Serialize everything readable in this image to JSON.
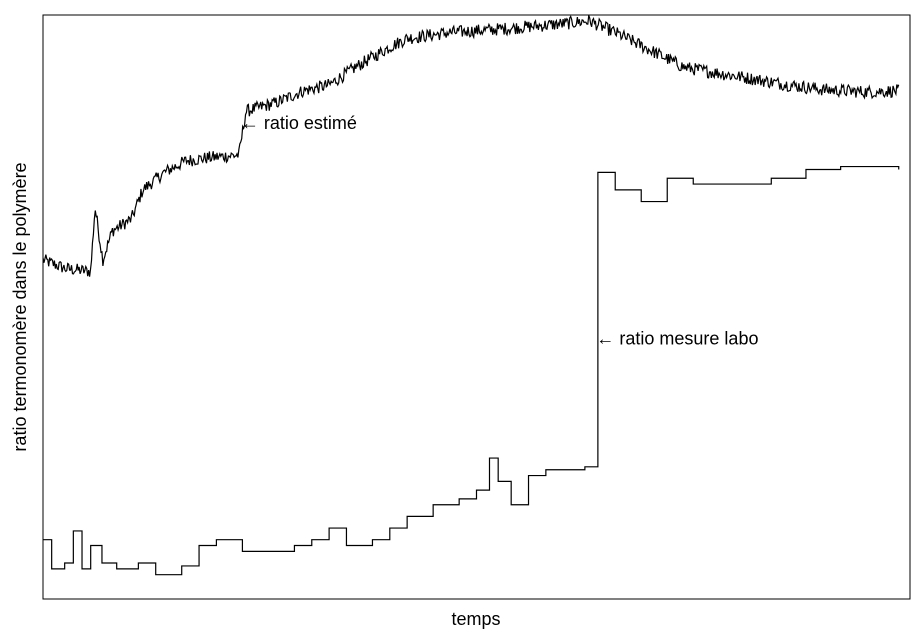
{
  "chart_data": {
    "type": "line",
    "title": "",
    "xlabel": "temps",
    "ylabel": "ratio termonomère dans le polymère",
    "x_ticks_shown": false,
    "y_ticks_shown": false,
    "grid": false,
    "legend": "none",
    "xlim": [
      0,
      1
    ],
    "ylim": [
      0,
      1
    ],
    "series": [
      {
        "name": "ratio estimé",
        "style": "noisy-line",
        "color": "#000000",
        "points": [
          [
            0.0,
            0.58
          ],
          [
            0.026,
            0.565
          ],
          [
            0.055,
            0.56
          ],
          [
            0.06,
            0.67
          ],
          [
            0.069,
            0.58
          ],
          [
            0.08,
            0.63
          ],
          [
            0.102,
            0.65
          ],
          [
            0.115,
            0.7
          ],
          [
            0.14,
            0.73
          ],
          [
            0.165,
            0.75
          ],
          [
            0.19,
            0.755
          ],
          [
            0.226,
            0.76
          ],
          [
            0.234,
            0.835
          ],
          [
            0.27,
            0.85
          ],
          [
            0.3,
            0.87
          ],
          [
            0.33,
            0.88
          ],
          [
            0.36,
            0.91
          ],
          [
            0.4,
            0.945
          ],
          [
            0.42,
            0.96
          ],
          [
            0.47,
            0.97
          ],
          [
            0.52,
            0.975
          ],
          [
            0.56,
            0.98
          ],
          [
            0.6,
            0.985
          ],
          [
            0.63,
            0.99
          ],
          [
            0.66,
            0.97
          ],
          [
            0.7,
            0.94
          ],
          [
            0.74,
            0.91
          ],
          [
            0.78,
            0.9
          ],
          [
            0.82,
            0.89
          ],
          [
            0.86,
            0.88
          ],
          [
            0.9,
            0.872
          ],
          [
            0.95,
            0.868
          ],
          [
            0.987,
            0.87
          ]
        ]
      },
      {
        "name": "ratio mesure labo",
        "style": "step",
        "color": "#000000",
        "points": [
          [
            0.0,
            0.1
          ],
          [
            0.01,
            0.05
          ],
          [
            0.025,
            0.06
          ],
          [
            0.035,
            0.115
          ],
          [
            0.045,
            0.05
          ],
          [
            0.055,
            0.09
          ],
          [
            0.068,
            0.06
          ],
          [
            0.085,
            0.05
          ],
          [
            0.11,
            0.06
          ],
          [
            0.13,
            0.04
          ],
          [
            0.16,
            0.055
          ],
          [
            0.18,
            0.09
          ],
          [
            0.2,
            0.1
          ],
          [
            0.23,
            0.08
          ],
          [
            0.26,
            0.08
          ],
          [
            0.29,
            0.09
          ],
          [
            0.31,
            0.1
          ],
          [
            0.33,
            0.12
          ],
          [
            0.35,
            0.09
          ],
          [
            0.38,
            0.1
          ],
          [
            0.4,
            0.12
          ],
          [
            0.42,
            0.14
          ],
          [
            0.45,
            0.16
          ],
          [
            0.48,
            0.17
          ],
          [
            0.5,
            0.185
          ],
          [
            0.515,
            0.24
          ],
          [
            0.525,
            0.2
          ],
          [
            0.54,
            0.16
          ],
          [
            0.56,
            0.21
          ],
          [
            0.58,
            0.22
          ],
          [
            0.625,
            0.225
          ],
          [
            0.64,
            0.73
          ],
          [
            0.66,
            0.7
          ],
          [
            0.69,
            0.68
          ],
          [
            0.72,
            0.72
          ],
          [
            0.75,
            0.71
          ],
          [
            0.8,
            0.71
          ],
          [
            0.84,
            0.72
          ],
          [
            0.88,
            0.735
          ],
          [
            0.92,
            0.74
          ],
          [
            0.987,
            0.735
          ]
        ]
      }
    ],
    "annotations": [
      {
        "text": "ratio estimé",
        "x": 0.226,
        "y": 0.815,
        "arrow": "left"
      },
      {
        "text": "ratio mesure labo",
        "x": 0.636,
        "y": 0.445,
        "arrow": "left"
      }
    ]
  }
}
